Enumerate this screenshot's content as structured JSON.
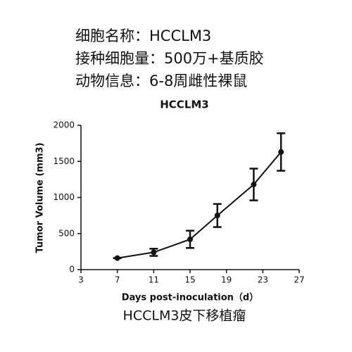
{
  "header": {
    "lines": [
      "细胞名称：HCCLM3",
      "接种细胞量：500万+基质胶",
      "动物信息：6-8周雌性裸鼠"
    ]
  },
  "chart_data": {
    "type": "line",
    "title": "HCCLM3",
    "x_label": "Days post-inoculation（d）",
    "y_label": "Tumor Volume (mm3)",
    "x": [
      7,
      11,
      15,
      18,
      22,
      25
    ],
    "series": [
      {
        "name": "HCCLM3",
        "color": "#111111",
        "values": [
          160,
          240,
          420,
          750,
          1180,
          1630
        ],
        "errors": [
          0,
          50,
          120,
          160,
          220,
          260
        ]
      }
    ],
    "xlim": [
      3,
      27
    ],
    "xticks": [
      3,
      7,
      11,
      15,
      19,
      23,
      27
    ],
    "ylim": [
      0,
      2000
    ],
    "yticks": [
      0,
      500,
      1000,
      1500,
      2000
    ],
    "grid": false
  },
  "footer": {
    "caption": "HCCLM3皮下移植瘤"
  }
}
